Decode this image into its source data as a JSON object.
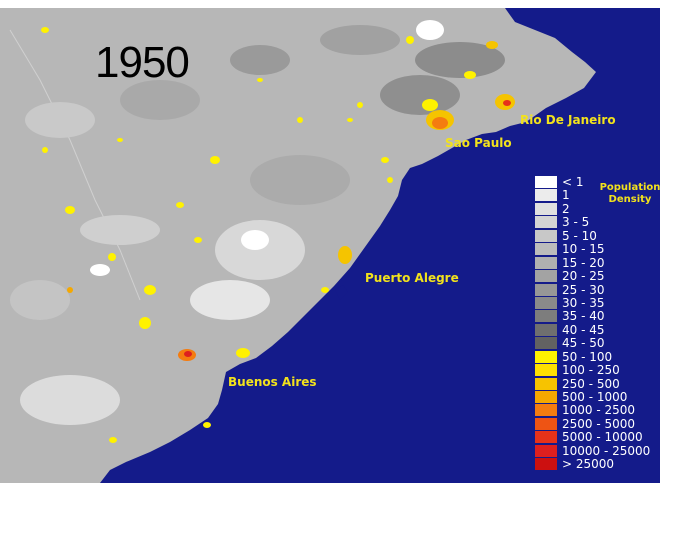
{
  "map": {
    "year": "1950",
    "colors": {
      "ocean": "#141b8a",
      "land": "#b7b7b7",
      "border": "#ffffff"
    },
    "cities": [
      {
        "name": "Rio De Janeiro"
      },
      {
        "name": "Sao Paulo"
      },
      {
        "name": "Puerto Alegre"
      },
      {
        "name": "Buenos Aires"
      }
    ],
    "legend": {
      "title_line1": "Population",
      "title_line2": "Density",
      "entries": [
        {
          "label": "< 1",
          "color": "#ffffff"
        },
        {
          "label": "1",
          "color": "#ececec"
        },
        {
          "label": "2",
          "color": "#e0e0e0"
        },
        {
          "label": "3 - 5",
          "color": "#d4d4d4"
        },
        {
          "label": "5 - 10",
          "color": "#c8c8c8"
        },
        {
          "label": "10 - 15",
          "color": "#bcbcbc"
        },
        {
          "label": "15 - 20",
          "color": "#b0b0b0"
        },
        {
          "label": "20 - 25",
          "color": "#a3a3a3"
        },
        {
          "label": "25 - 30",
          "color": "#979797"
        },
        {
          "label": "30 - 35",
          "color": "#8a8a8a"
        },
        {
          "label": "35 - 40",
          "color": "#7d7d7d"
        },
        {
          "label": "40 - 45",
          "color": "#6f6f6f"
        },
        {
          "label": "45 - 50",
          "color": "#626262"
        },
        {
          "label": "50 - 100",
          "color": "#fff200"
        },
        {
          "label": "100 - 250",
          "color": "#ffe000"
        },
        {
          "label": "250 - 500",
          "color": "#f7c300"
        },
        {
          "label": "500 - 1000",
          "color": "#f5a800"
        },
        {
          "label": "1000 - 2500",
          "color": "#f47c10"
        },
        {
          "label": "2500 - 5000",
          "color": "#ee5414"
        },
        {
          "label": "5000 - 10000",
          "color": "#e6321a"
        },
        {
          "label": "10000 - 25000",
          "color": "#dd1f1f"
        },
        {
          "label": "> 25000",
          "color": "#cc1010"
        }
      ]
    }
  }
}
